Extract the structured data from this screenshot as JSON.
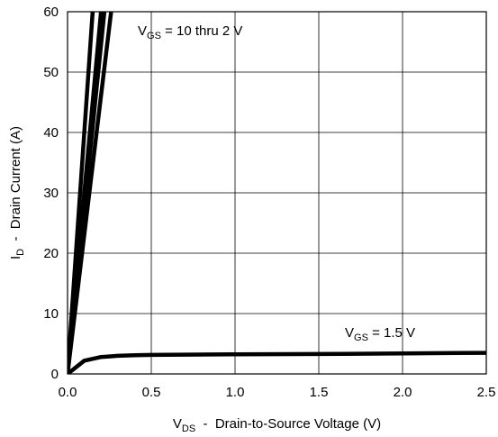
{
  "chart_data": {
    "type": "line",
    "title": "",
    "xlabel": {
      "main": "V",
      "sub": "DS",
      "rest": "  -  Drain-to-Source Voltage (V)"
    },
    "ylabel": {
      "main": "I",
      "sub": "D",
      "rest": "  -  Drain Current (A)"
    },
    "xlim": [
      0,
      2.5
    ],
    "ylim": [
      0,
      60
    ],
    "x_ticks": [
      "0.0",
      "0.5",
      "1.0",
      "1.5",
      "2.0",
      "2.5"
    ],
    "y_ticks": [
      "0",
      "10",
      "20",
      "30",
      "40",
      "50",
      "60"
    ],
    "grid": true,
    "annotations": [
      {
        "main": "V",
        "sub": "GS",
        "rest": " = 10 thru 2 V"
      },
      {
        "main": "V",
        "sub": "GS",
        "rest": " = 1.5 V"
      }
    ],
    "series": [
      {
        "x": [
          0,
          0.15
        ],
        "y": [
          0,
          60
        ]
      },
      {
        "x": [
          0,
          0.2
        ],
        "y": [
          0,
          60
        ]
      },
      {
        "x": [
          0,
          0.22
        ],
        "y": [
          0,
          60
        ]
      },
      {
        "x": [
          0,
          0.26
        ],
        "y": [
          0,
          60
        ]
      },
      {
        "x": [
          0,
          0.1,
          0.2,
          0.3,
          0.4,
          0.5,
          0.7,
          1.0,
          1.5,
          2.0,
          2.5
        ],
        "y": [
          0,
          2.2,
          2.8,
          3.0,
          3.1,
          3.15,
          3.2,
          3.25,
          3.3,
          3.4,
          3.5
        ]
      }
    ]
  }
}
